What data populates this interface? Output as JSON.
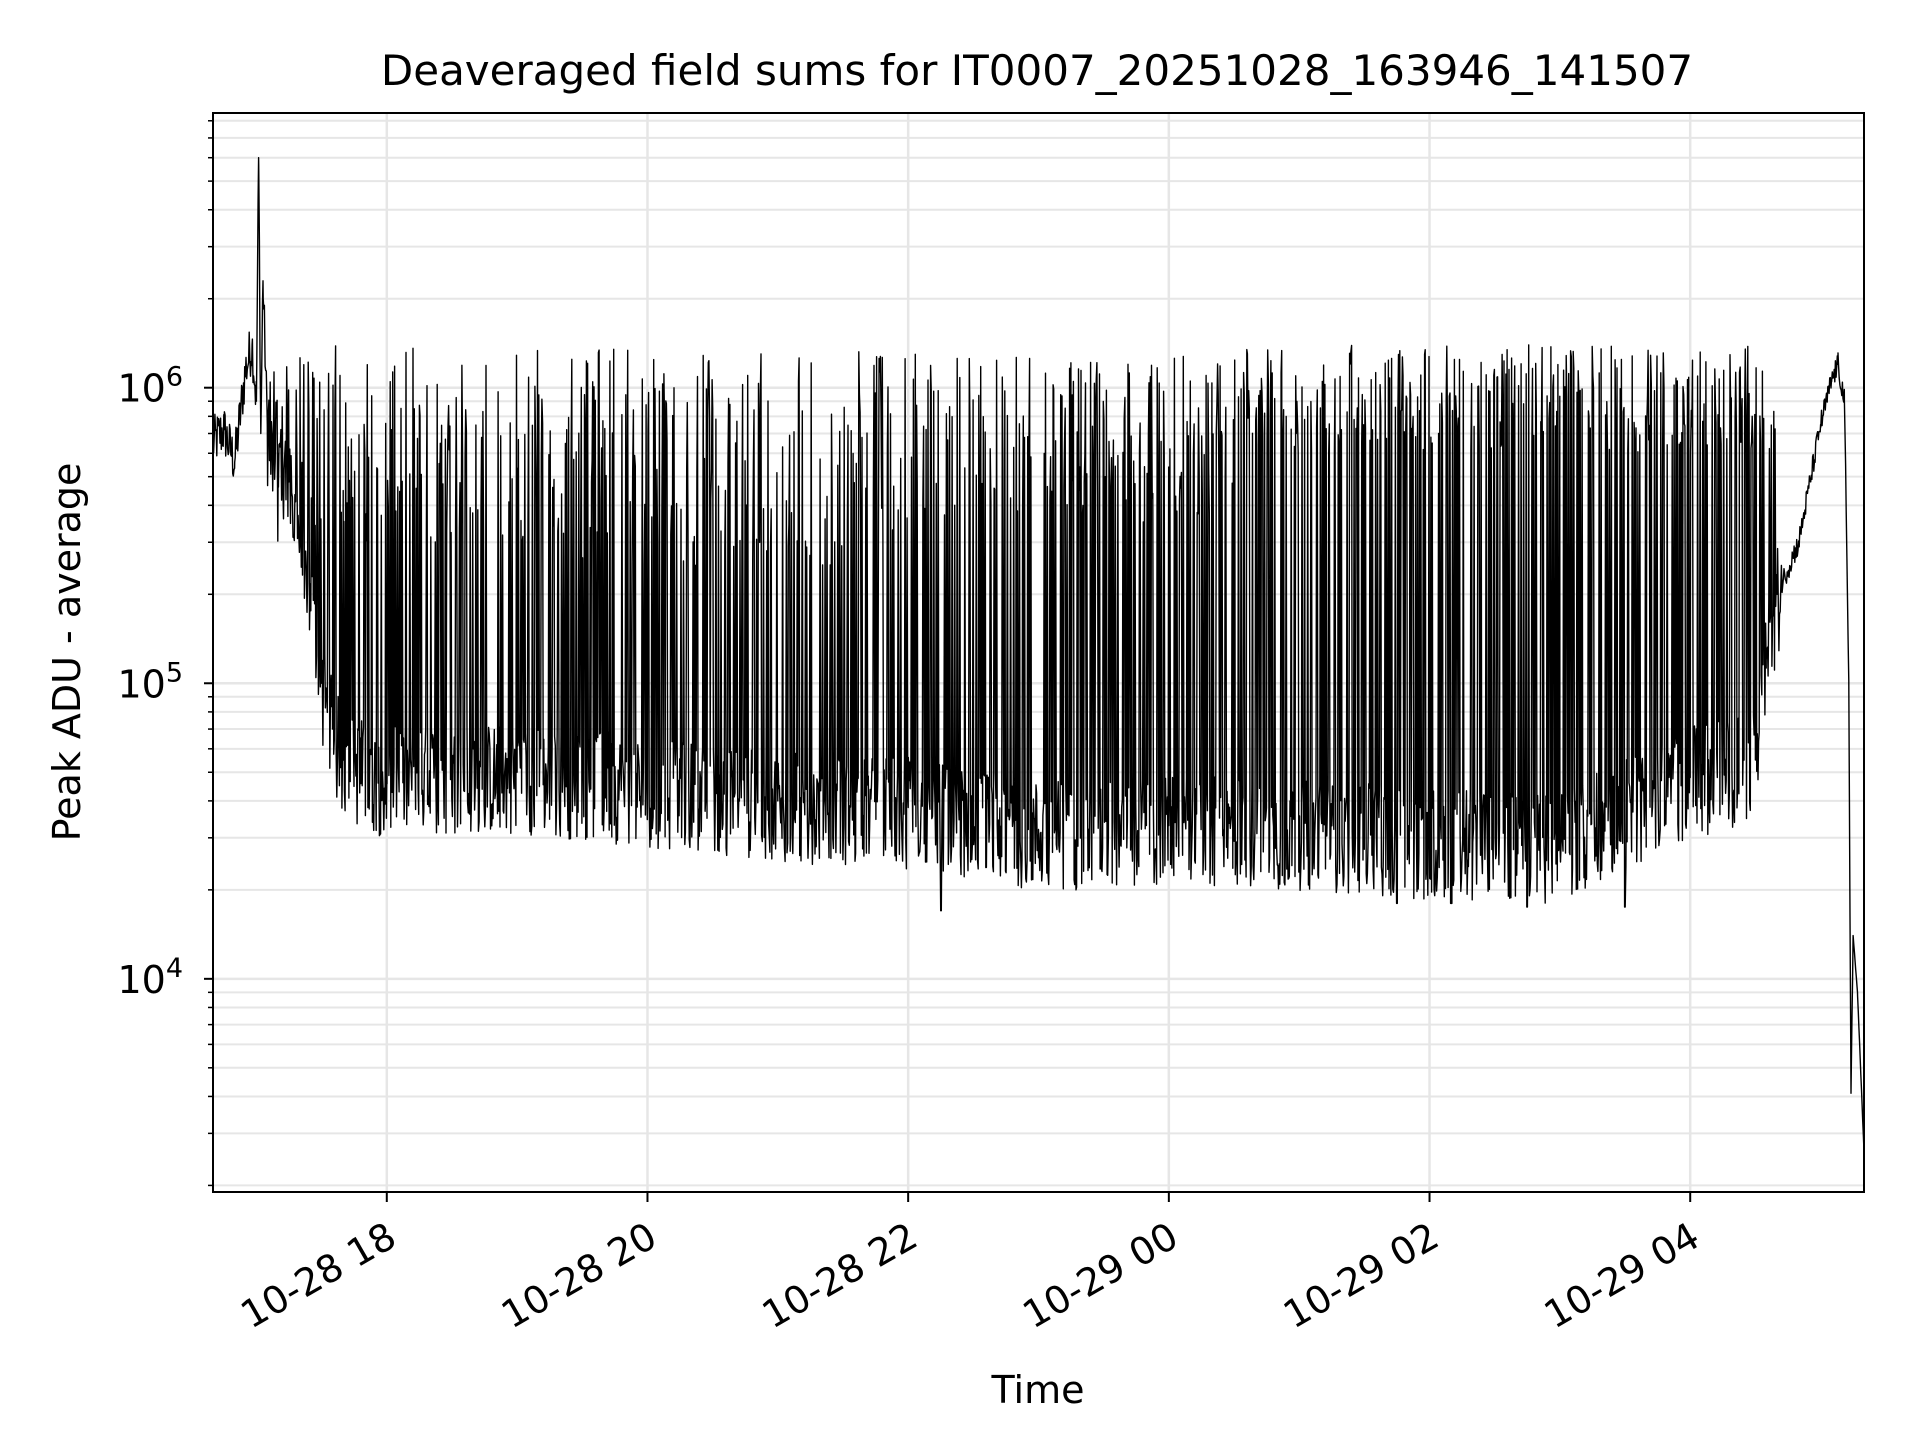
{
  "chart_data": {
    "type": "line",
    "title": "Deaveraged field sums for IT0007_20251028_163946_141507",
    "xlabel": "Time",
    "ylabel": "Peak ADU - average",
    "y_scale": "log",
    "grid": true,
    "legend": "none",
    "xlim": [
      "2025-10-28 16:40",
      "2025-10-29 05:20"
    ],
    "ylim": [
      1900,
      8500000
    ],
    "x_ticks": [
      {
        "value": "2025-10-28 18:00",
        "label": "10-28 18"
      },
      {
        "value": "2025-10-28 20:00",
        "label": "10-28 20"
      },
      {
        "value": "2025-10-28 22:00",
        "label": "10-28 22"
      },
      {
        "value": "2025-10-29 00:00",
        "label": "10-29 00"
      },
      {
        "value": "2025-10-29 02:00",
        "label": "10-29 02"
      },
      {
        "value": "2025-10-29 04:00",
        "label": "10-29 04"
      }
    ],
    "y_ticks": [
      {
        "value": 10000,
        "base": "10",
        "exp": "4"
      },
      {
        "value": 100000,
        "base": "10",
        "exp": "5"
      },
      {
        "value": 1000000,
        "base": "10",
        "exp": "6"
      }
    ],
    "series": [
      {
        "color": "#000000",
        "points": [
          [
            "2025-10-28 16:40",
            650000
          ],
          [
            "2025-10-28 16:45",
            720000
          ],
          [
            "2025-10-28 16:50",
            560000
          ],
          [
            "2025-10-28 16:55",
            1150000
          ],
          [
            "2025-10-28 16:58",
            1400000
          ],
          [
            "2025-10-28 17:00",
            900000
          ],
          [
            "2025-10-28 17:01",
            6000000
          ],
          [
            "2025-10-28 17:02",
            700000
          ],
          [
            "2025-10-28 17:03",
            2300000
          ],
          [
            "2025-10-28 17:05",
            750000
          ],
          [
            "2025-10-28 17:10",
            600000
          ],
          [
            "2025-10-28 17:15",
            480000
          ],
          [
            "2025-10-28 17:20",
            300000
          ],
          [
            "2025-10-28 17:25",
            180000
          ],
          [
            "2025-10-28 17:30",
            100000
          ],
          [
            "2025-10-28 17:35",
            70000
          ],
          [
            "2025-10-28 17:40",
            55000
          ],
          [
            "2025-10-28 18:00",
            48000
          ],
          [
            "2025-10-28 19:00",
            50000
          ],
          [
            "2025-10-28 20:00",
            45000
          ],
          [
            "2025-10-28 21:00",
            40000
          ],
          [
            "2025-10-28 22:00",
            38000
          ],
          [
            "2025-10-28 23:00",
            32000
          ],
          [
            "2025-10-29 00:00",
            33000
          ],
          [
            "2025-10-29 01:00",
            32000
          ],
          [
            "2025-10-29 02:00",
            30000
          ],
          [
            "2025-10-29 03:00",
            29000
          ],
          [
            "2025-10-29 04:00",
            48000
          ],
          [
            "2025-10-29 04:30",
            55000
          ],
          [
            "2025-10-29 04:35",
            120000
          ],
          [
            "2025-10-29 04:40",
            200000
          ],
          [
            "2025-10-29 04:50",
            300000
          ],
          [
            "2025-10-29 05:00",
            750000
          ],
          [
            "2025-10-29 05:05",
            1050000
          ],
          [
            "2025-10-29 05:08",
            1200000
          ],
          [
            "2025-10-29 05:11",
            900000
          ],
          [
            "2025-10-29 05:13",
            100000
          ],
          [
            "2025-10-29 05:14",
            4100
          ],
          [
            "2025-10-29 05:15",
            14000
          ],
          [
            "2025-10-29 05:17",
            9000
          ],
          [
            "2025-10-29 05:20",
            2600
          ]
        ],
        "spike_ranges": [
          {
            "from": "2025-10-28 17:05",
            "to": "2025-10-28 19:30",
            "spike_min": 300000,
            "spike_max": 1400000
          },
          {
            "from": "2025-10-28 19:30",
            "to": "2025-10-28 22:30",
            "spike_min": 250000,
            "spike_max": 1350000
          },
          {
            "from": "2025-10-28 22:30",
            "to": "2025-10-29 00:30",
            "spike_min": 350000,
            "spike_max": 1300000
          },
          {
            "from": "2025-10-29 00:30",
            "to": "2025-10-29 04:40",
            "spike_min": 600000,
            "spike_max": 1400000
          }
        ],
        "dips": [
          {
            "x": "2025-10-28 22:15",
            "y": 17000
          },
          {
            "x": "2025-10-29 01:45",
            "y": 18000
          },
          {
            "x": "2025-10-29 02:10",
            "y": 18000
          },
          {
            "x": "2025-10-29 02:45",
            "y": 17500
          },
          {
            "x": "2025-10-29 03:30",
            "y": 17500
          }
        ]
      }
    ]
  }
}
